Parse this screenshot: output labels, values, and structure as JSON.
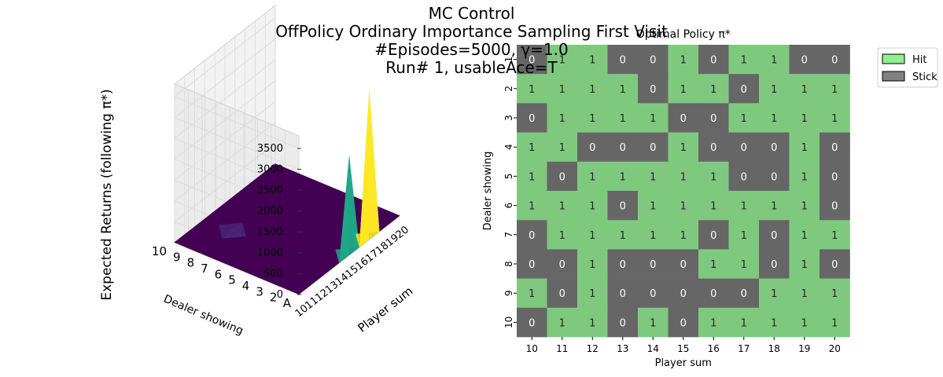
{
  "suptitle": {
    "line1": "MC Control",
    "line2": "OffPolicy Ordinary Importance Sampling First Visit",
    "line3": "#Episodes=5000, γ=1.0",
    "line4": "Run# 1, usableAce=T"
  },
  "chart_data": [
    {
      "type": "surface3d",
      "zlabel": "Expected Returns (following π*)",
      "xlabel": "Player sum",
      "ylabel": "Dealer showing",
      "x_ticks": [
        "10",
        "11",
        "12",
        "13",
        "14",
        "15",
        "16",
        "17",
        "18",
        "19",
        "20"
      ],
      "y_ticks": [
        "A",
        "2",
        "3",
        "4",
        "5",
        "6",
        "7",
        "8",
        "9",
        "10"
      ],
      "z_ticks": [
        "0",
        "500",
        "1000",
        "1500",
        "2000",
        "2500",
        "3000",
        "3500"
      ],
      "zlim": [
        0,
        3800
      ],
      "peaks": [
        {
          "player_sum": 15,
          "dealer_showing": "A",
          "value": 2400,
          "color": "#21a685"
        },
        {
          "player_sum": 17,
          "dealer_showing": "A",
          "value": 3600,
          "color": "#fde725"
        },
        {
          "player_sum": 13,
          "dealer_showing": "8",
          "value": 80,
          "color": "#482475"
        }
      ],
      "base_color": "#440154"
    },
    {
      "type": "heatmap",
      "title": "Optimal Policy π*",
      "xlabel": "Player sum",
      "ylabel": "Dealer showing",
      "x_ticks": [
        "10",
        "11",
        "12",
        "13",
        "14",
        "15",
        "16",
        "17",
        "18",
        "19",
        "20"
      ],
      "y_ticks": [
        "1",
        "2",
        "3",
        "4",
        "5",
        "6",
        "7",
        "8",
        "9",
        "10"
      ],
      "values": [
        [
          0,
          1,
          1,
          0,
          0,
          1,
          0,
          1,
          1,
          0,
          0
        ],
        [
          1,
          1,
          1,
          1,
          0,
          1,
          1,
          0,
          1,
          1,
          1
        ],
        [
          0,
          1,
          1,
          1,
          1,
          0,
          0,
          1,
          1,
          1,
          1
        ],
        [
          1,
          1,
          0,
          0,
          0,
          1,
          0,
          0,
          0,
          1,
          0
        ],
        [
          1,
          0,
          1,
          1,
          1,
          1,
          1,
          0,
          0,
          1,
          0
        ],
        [
          1,
          1,
          1,
          0,
          1,
          1,
          1,
          1,
          1,
          1,
          0
        ],
        [
          0,
          1,
          1,
          1,
          1,
          1,
          0,
          1,
          0,
          1,
          1
        ],
        [
          0,
          0,
          1,
          0,
          0,
          0,
          1,
          1,
          0,
          1,
          0
        ],
        [
          1,
          0,
          1,
          0,
          0,
          0,
          0,
          0,
          1,
          1,
          1
        ],
        [
          0,
          1,
          1,
          0,
          1,
          0,
          1,
          1,
          1,
          1,
          1
        ]
      ],
      "colors": {
        "1": "#7fc97f",
        "0": "#666666"
      },
      "legend": {
        "placement": "upper-right-outside",
        "items": [
          {
            "label": "Hit",
            "color": "#90ee90"
          },
          {
            "label": "Stick",
            "color": "#808080"
          }
        ]
      }
    }
  ]
}
